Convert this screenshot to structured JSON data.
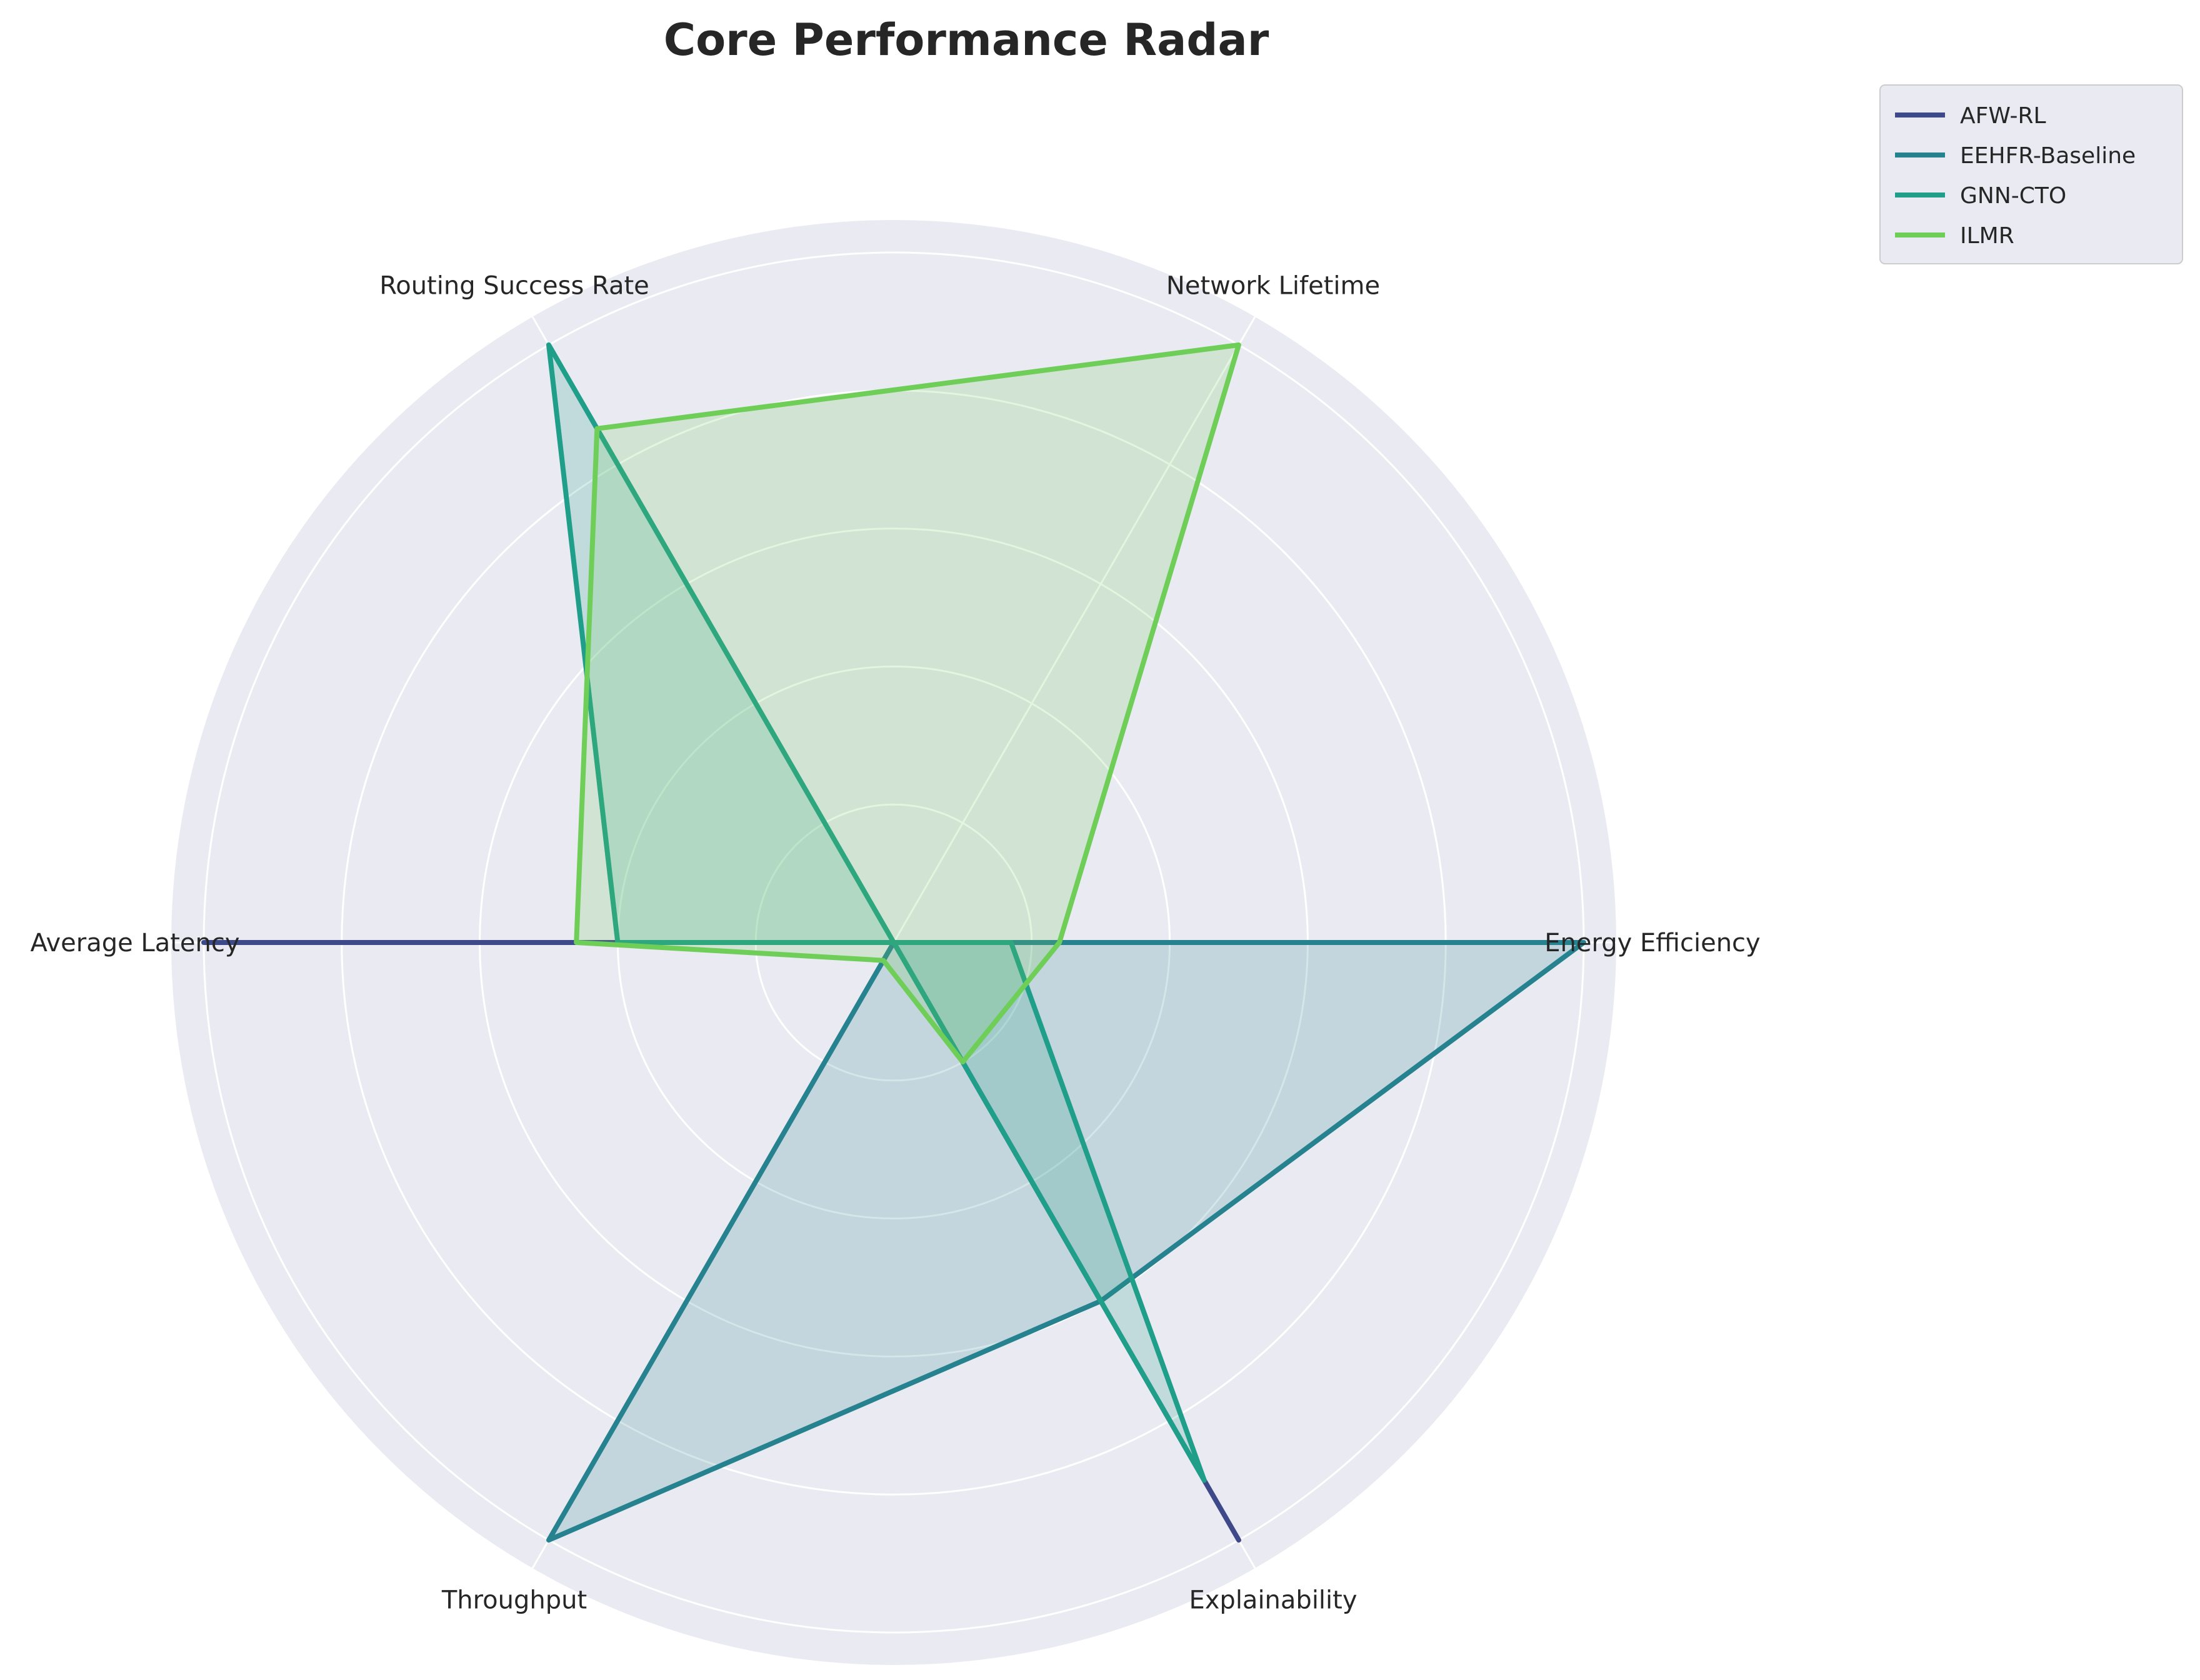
{
  "chart_data": {
    "type": "radar",
    "title": "Core Performance Radar",
    "axes": [
      "Energy Efficiency",
      "Network Lifetime",
      "Routing Success Rate",
      "Average Latency",
      "Throughput",
      "Explainability"
    ],
    "rlim": [
      0,
      1
    ],
    "grid": true,
    "legend_position": "top-right outside",
    "series": [
      {
        "name": "AFW-RL",
        "color": "#3e4989",
        "values": [
          0.0,
          0.0,
          0.0,
          1.0,
          0.0,
          1.0
        ],
        "fill": false
      },
      {
        "name": "EEHFR-Baseline",
        "color": "#26828e",
        "values": [
          1.0,
          0.0,
          0.0,
          0.0,
          1.0,
          0.6
        ],
        "fill": true
      },
      {
        "name": "GNN-CTO",
        "color": "#1f9e89",
        "values": [
          0.17,
          0.0,
          1.0,
          0.4,
          0.0,
          0.9
        ],
        "fill": true
      },
      {
        "name": "ILMR",
        "color": "#6ece58",
        "values": [
          0.24,
          1.0,
          0.86,
          0.46,
          0.03,
          0.2
        ],
        "fill": true
      }
    ]
  }
}
